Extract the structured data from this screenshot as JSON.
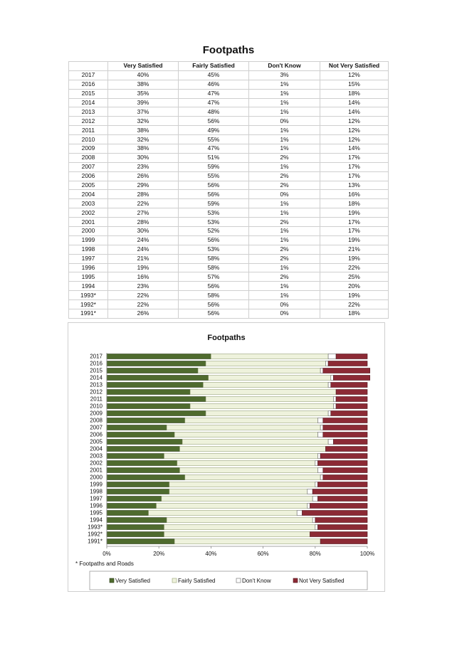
{
  "title": "Footpaths",
  "table": {
    "headers": [
      "",
      "Very Satisfied",
      "Fairly Satisfied",
      "Don't Know",
      "Not Very Satisfied"
    ],
    "rows": [
      [
        "2017",
        "40%",
        "45%",
        "3%",
        "12%"
      ],
      [
        "2016",
        "38%",
        "46%",
        "1%",
        "15%"
      ],
      [
        "2015",
        "35%",
        "47%",
        "1%",
        "18%"
      ],
      [
        "2014",
        "39%",
        "47%",
        "1%",
        "14%"
      ],
      [
        "2013",
        "37%",
        "48%",
        "1%",
        "14%"
      ],
      [
        "2012",
        "32%",
        "56%",
        "0%",
        "12%"
      ],
      [
        "2011",
        "38%",
        "49%",
        "1%",
        "12%"
      ],
      [
        "2010",
        "32%",
        "55%",
        "1%",
        "12%"
      ],
      [
        "2009",
        "38%",
        "47%",
        "1%",
        "14%"
      ],
      [
        "2008",
        "30%",
        "51%",
        "2%",
        "17%"
      ],
      [
        "2007",
        "23%",
        "59%",
        "1%",
        "17%"
      ],
      [
        "2006",
        "26%",
        "55%",
        "2%",
        "17%"
      ],
      [
        "2005",
        "29%",
        "56%",
        "2%",
        "13%"
      ],
      [
        "2004",
        "28%",
        "56%",
        "0%",
        "16%"
      ],
      [
        "2003",
        "22%",
        "59%",
        "1%",
        "18%"
      ],
      [
        "2002",
        "27%",
        "53%",
        "1%",
        "19%"
      ],
      [
        "2001",
        "28%",
        "53%",
        "2%",
        "17%"
      ],
      [
        "2000",
        "30%",
        "52%",
        "1%",
        "17%"
      ],
      [
        "1999",
        "24%",
        "56%",
        "1%",
        "19%"
      ],
      [
        "1998",
        "24%",
        "53%",
        "2%",
        "21%"
      ],
      [
        "1997",
        "21%",
        "58%",
        "2%",
        "19%"
      ],
      [
        "1996",
        "19%",
        "58%",
        "1%",
        "22%"
      ],
      [
        "1995",
        "16%",
        "57%",
        "2%",
        "25%"
      ],
      [
        "1994",
        "23%",
        "56%",
        "1%",
        "20%"
      ],
      [
        "1993*",
        "22%",
        "58%",
        "1%",
        "19%"
      ],
      [
        "1992*",
        "22%",
        "56%",
        "0%",
        "22%"
      ],
      [
        "1991*",
        "26%",
        "56%",
        "0%",
        "18%"
      ]
    ]
  },
  "footnote": "* Footpaths and Roads",
  "colors": {
    "very_satisfied": "#4f6b2e",
    "fairly_satisfied": "#eef2dc",
    "dont_know": "#ffffff",
    "not_very_satisfied": "#8c2a35"
  },
  "chart_data": {
    "type": "bar",
    "orientation": "horizontal",
    "stacked": "100%",
    "title": "Footpaths",
    "categories": [
      "2017",
      "2016",
      "2015",
      "2014",
      "2013",
      "2012",
      "2011",
      "2010",
      "2009",
      "2008",
      "2007",
      "2006",
      "2005",
      "2004",
      "2003",
      "2002",
      "2001",
      "2000",
      "1999",
      "1998",
      "1997",
      "1996",
      "1995",
      "1994",
      "1993*",
      "1992*",
      "1991*"
    ],
    "series": [
      {
        "name": "Very Satisfied",
        "values": [
          40,
          38,
          35,
          39,
          37,
          32,
          38,
          32,
          38,
          30,
          23,
          26,
          29,
          28,
          22,
          27,
          28,
          30,
          24,
          24,
          21,
          19,
          16,
          23,
          22,
          22,
          26
        ]
      },
      {
        "name": "Fairly Satisfied",
        "values": [
          45,
          46,
          47,
          47,
          48,
          56,
          49,
          55,
          47,
          51,
          59,
          55,
          56,
          56,
          59,
          53,
          53,
          52,
          56,
          53,
          58,
          58,
          57,
          56,
          58,
          56,
          56
        ]
      },
      {
        "name": "Don't Know",
        "values": [
          3,
          1,
          1,
          1,
          1,
          0,
          1,
          1,
          1,
          2,
          1,
          2,
          2,
          0,
          1,
          1,
          2,
          1,
          1,
          2,
          2,
          1,
          2,
          1,
          1,
          0,
          0
        ]
      },
      {
        "name": "Not Very Satisfied",
        "values": [
          12,
          15,
          18,
          14,
          14,
          12,
          12,
          12,
          14,
          17,
          17,
          17,
          13,
          16,
          18,
          19,
          17,
          17,
          19,
          21,
          19,
          22,
          25,
          20,
          19,
          22,
          18
        ]
      }
    ],
    "x_ticks": [
      "0%",
      "20%",
      "40%",
      "60%",
      "80%",
      "100%"
    ],
    "xlim": [
      0,
      100
    ],
    "legend_position": "bottom",
    "grid": false
  }
}
